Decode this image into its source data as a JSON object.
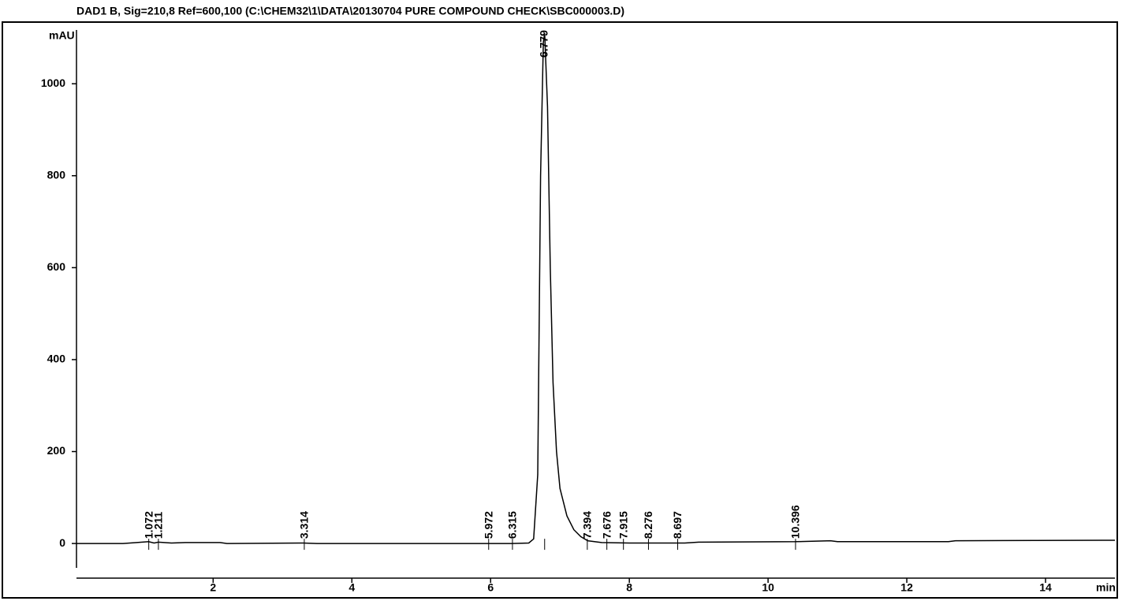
{
  "chart_data": {
    "type": "line",
    "title": "DAD1 B, Sig=210,8 Ref=600,100 (C:\\CHEM32\\1\\DATA\\20130704 PURE COMPOUND CHECK\\SBC000003.D)",
    "y_label": "mAU",
    "x_label": "min",
    "color": "#000000",
    "x": [
      0.03,
      0.7,
      0.9,
      1.07,
      1.15,
      1.21,
      1.4,
      1.6,
      2.1,
      2.2,
      3.3,
      3.5,
      5.9,
      6.3,
      6.55,
      6.62,
      6.68,
      6.72,
      6.76,
      6.78,
      6.82,
      6.86,
      6.9,
      6.95,
      7.0,
      7.1,
      7.2,
      7.3,
      7.4,
      7.6,
      8.0,
      8.8,
      9.0,
      10.4,
      10.9,
      11.0,
      12.6,
      12.7,
      15.0
    ],
    "values": [
      0,
      0,
      2,
      4,
      1,
      3,
      1,
      2,
      2,
      0,
      1,
      0,
      0,
      0,
      1,
      10,
      150,
      800,
      1090,
      1110,
      950,
      600,
      350,
      200,
      120,
      60,
      30,
      15,
      6,
      2,
      1,
      1,
      3,
      4,
      6,
      4,
      4,
      6,
      7
    ],
    "peak_labels": [
      1.072,
      1.211,
      3.314,
      5.972,
      6.315,
      6.779,
      7.394,
      7.676,
      7.915,
      8.276,
      8.697,
      10.396
    ],
    "xlim": [
      0.03,
      15
    ],
    "ylim": [
      -53,
      1117
    ],
    "xticks": [
      2,
      4,
      6,
      8,
      10,
      12,
      14
    ],
    "yticks": [
      0,
      200,
      400,
      600,
      800,
      1000
    ]
  }
}
